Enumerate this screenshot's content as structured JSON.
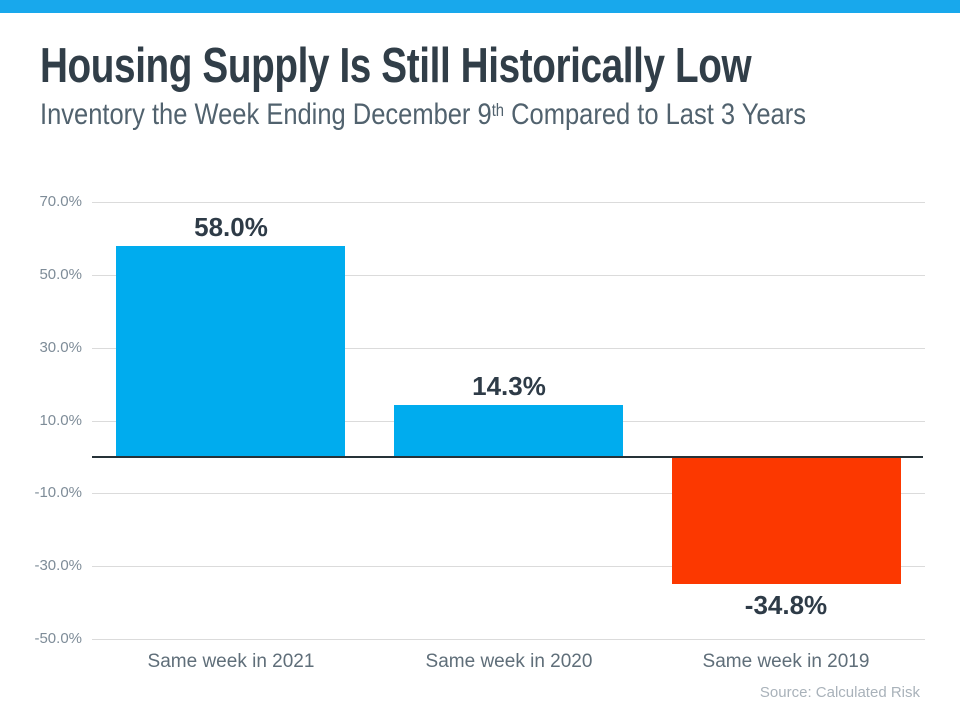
{
  "page": {
    "accent_strip_color": "#18A8EC"
  },
  "header": {
    "title": "Housing Supply Is Still Historically Low",
    "subtitle_prefix": "Inventory the Week Ending December 9",
    "subtitle_sup": "th",
    "subtitle_suffix": " Compared to Last 3 Years"
  },
  "chart_data": {
    "type": "bar",
    "title": "Housing Supply Is Still Historically Low",
    "subtitle": "Inventory the Week Ending December 9th Compared to Last 3 Years",
    "categories": [
      "Same week in 2021",
      "Same week in 2020",
      "Same week in 2019"
    ],
    "values": [
      58.0,
      14.3,
      -34.8
    ],
    "value_labels": [
      "58.0%",
      "14.3%",
      "-34.8%"
    ],
    "bar_colors": [
      "#00ACEE",
      "#00ACEE",
      "#FC3800"
    ],
    "ylim": [
      -50,
      70
    ],
    "yticks": [
      {
        "value": 70,
        "label": "70.0%"
      },
      {
        "value": 50,
        "label": "50.0%"
      },
      {
        "value": 30,
        "label": "30.0%"
      },
      {
        "value": 10,
        "label": "10.0%"
      },
      {
        "value": -10,
        "label": "-10.0%"
      },
      {
        "value": -30,
        "label": "-30.0%"
      },
      {
        "value": -50,
        "label": "-50.0%"
      }
    ],
    "grid": true,
    "zero_line": true,
    "legend": false
  },
  "footer": {
    "source": "Source: Calculated Risk"
  }
}
